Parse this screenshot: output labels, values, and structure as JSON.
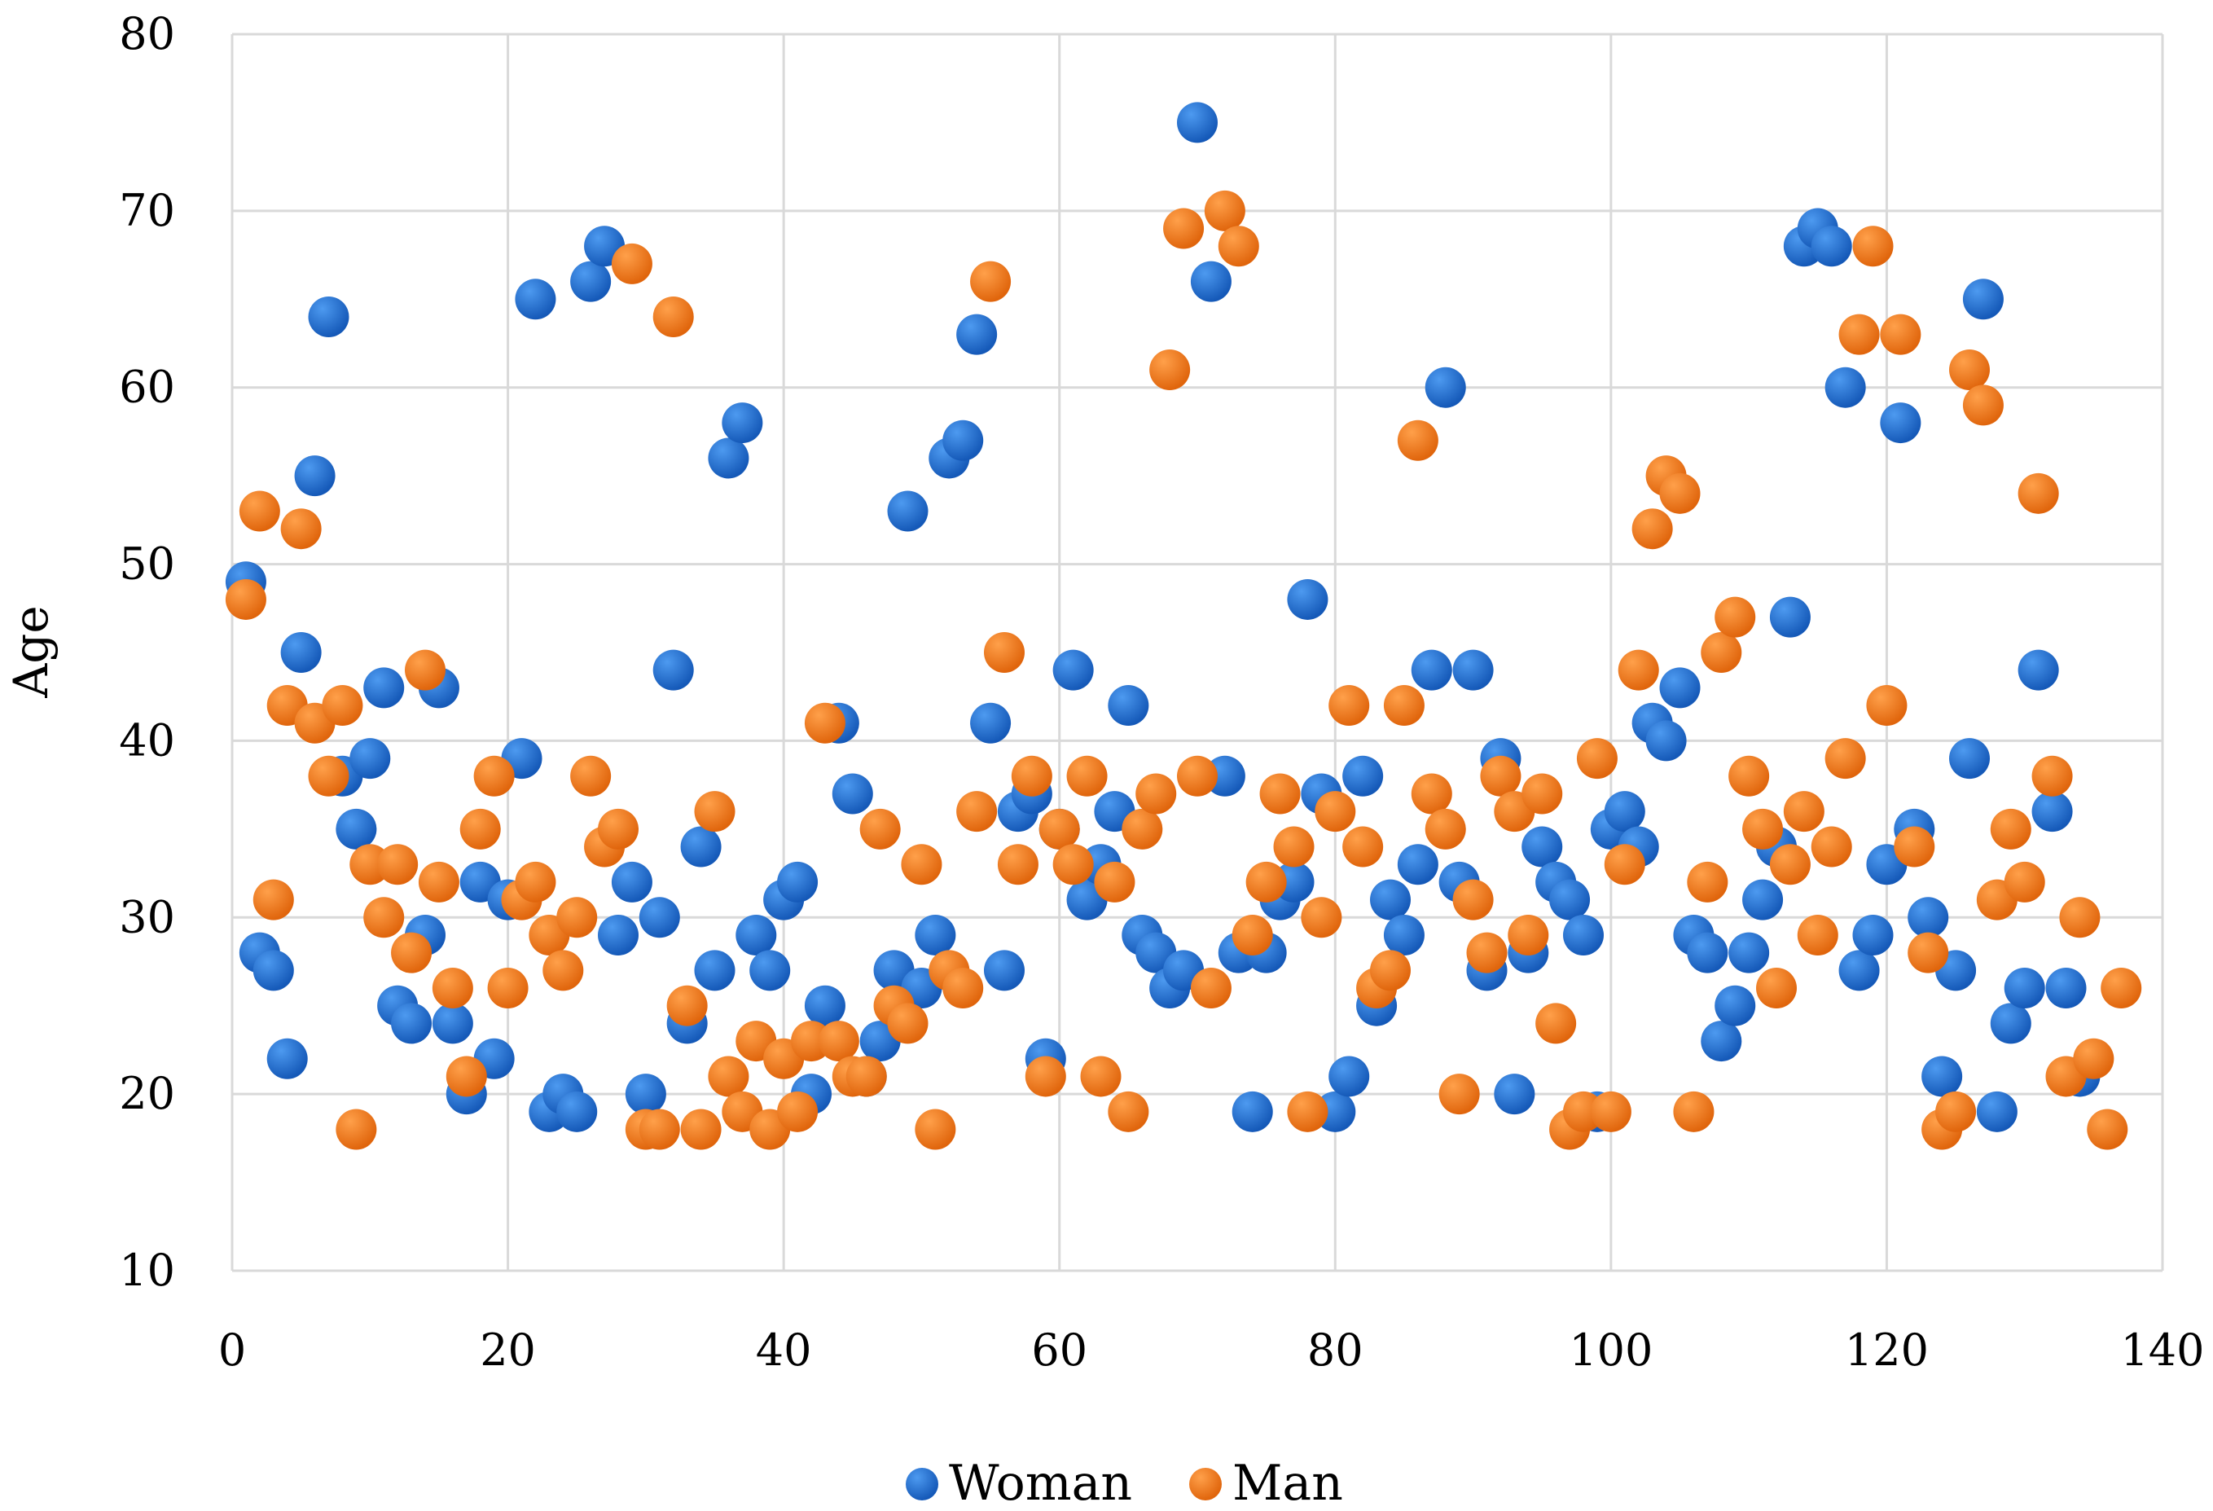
{
  "chart_data": {
    "type": "scatter",
    "title": "",
    "xlabel": "",
    "ylabel": "Age",
    "xlim": [
      0,
      140
    ],
    "ylim": [
      10,
      80
    ],
    "x_ticks": [
      "0",
      "20",
      "40",
      "60",
      "80",
      "100",
      "120",
      "140"
    ],
    "y_ticks": [
      "10",
      "20",
      "30",
      "40",
      "50",
      "60",
      "70",
      "80"
    ],
    "grid": true,
    "legend_position": "bottom-center",
    "series": [
      {
        "name": "Woman",
        "color": "#1f6fd1",
        "points": [
          [
            1,
            49
          ],
          [
            2,
            28
          ],
          [
            3,
            27
          ],
          [
            4,
            22
          ],
          [
            5,
            45
          ],
          [
            6,
            55
          ],
          [
            7,
            64
          ],
          [
            8,
            38
          ],
          [
            9,
            35
          ],
          [
            10,
            39
          ],
          [
            11,
            43
          ],
          [
            12,
            25
          ],
          [
            13,
            24
          ],
          [
            14,
            29
          ],
          [
            15,
            43
          ],
          [
            16,
            24
          ],
          [
            17,
            20
          ],
          [
            18,
            32
          ],
          [
            19,
            22
          ],
          [
            20,
            31
          ],
          [
            21,
            39
          ],
          [
            22,
            65
          ],
          [
            23,
            19
          ],
          [
            24,
            20
          ],
          [
            25,
            19
          ],
          [
            26,
            66
          ],
          [
            27,
            68
          ],
          [
            28,
            29
          ],
          [
            29,
            32
          ],
          [
            30,
            20
          ],
          [
            31,
            30
          ],
          [
            32,
            44
          ],
          [
            33,
            24
          ],
          [
            34,
            34
          ],
          [
            35,
            27
          ],
          [
            36,
            56
          ],
          [
            37,
            58
          ],
          [
            38,
            29
          ],
          [
            39,
            27
          ],
          [
            40,
            31
          ],
          [
            41,
            32
          ],
          [
            42,
            20
          ],
          [
            43,
            25
          ],
          [
            44,
            41
          ],
          [
            45,
            37
          ],
          [
            46,
            21
          ],
          [
            47,
            23
          ],
          [
            48,
            27
          ],
          [
            49,
            53
          ],
          [
            50,
            26
          ],
          [
            51,
            29
          ],
          [
            52,
            56
          ],
          [
            53,
            57
          ],
          [
            54,
            63
          ],
          [
            55,
            41
          ],
          [
            56,
            27
          ],
          [
            57,
            36
          ],
          [
            58,
            37
          ],
          [
            59,
            22
          ],
          [
            60,
            35
          ],
          [
            61,
            44
          ],
          [
            62,
            31
          ],
          [
            63,
            33
          ],
          [
            64,
            36
          ],
          [
            65,
            42
          ],
          [
            66,
            29
          ],
          [
            67,
            28
          ],
          [
            68,
            26
          ],
          [
            69,
            27
          ],
          [
            70,
            75
          ],
          [
            71,
            66
          ],
          [
            72,
            38
          ],
          [
            73,
            28
          ],
          [
            74,
            19
          ],
          [
            75,
            28
          ],
          [
            76,
            31
          ],
          [
            77,
            32
          ],
          [
            78,
            48
          ],
          [
            79,
            37
          ],
          [
            80,
            19
          ],
          [
            81,
            21
          ],
          [
            82,
            38
          ],
          [
            83,
            25
          ],
          [
            84,
            31
          ],
          [
            85,
            29
          ],
          [
            86,
            33
          ],
          [
            87,
            44
          ],
          [
            88,
            60
          ],
          [
            89,
            32
          ],
          [
            90,
            44
          ],
          [
            91,
            27
          ],
          [
            92,
            39
          ],
          [
            93,
            20
          ],
          [
            94,
            28
          ],
          [
            95,
            34
          ],
          [
            96,
            32
          ],
          [
            97,
            31
          ],
          [
            98,
            29
          ],
          [
            99,
            19
          ],
          [
            100,
            35
          ],
          [
            101,
            36
          ],
          [
            102,
            34
          ],
          [
            103,
            41
          ],
          [
            104,
            40
          ],
          [
            105,
            43
          ],
          [
            106,
            29
          ],
          [
            107,
            28
          ],
          [
            108,
            23
          ],
          [
            109,
            25
          ],
          [
            110,
            28
          ],
          [
            111,
            31
          ],
          [
            112,
            34
          ],
          [
            113,
            47
          ],
          [
            114,
            68
          ],
          [
            115,
            69
          ],
          [
            116,
            68
          ],
          [
            117,
            60
          ],
          [
            118,
            27
          ],
          [
            119,
            29
          ],
          [
            120,
            33
          ],
          [
            121,
            58
          ],
          [
            122,
            35
          ],
          [
            123,
            30
          ],
          [
            124,
            21
          ],
          [
            125,
            27
          ],
          [
            126,
            39
          ],
          [
            127,
            65
          ],
          [
            128,
            19
          ],
          [
            129,
            24
          ],
          [
            130,
            26
          ],
          [
            131,
            44
          ],
          [
            132,
            36
          ],
          [
            133,
            26
          ],
          [
            134,
            21
          ]
        ]
      },
      {
        "name": "Man",
        "color": "#f57c20",
        "points": [
          [
            1,
            48
          ],
          [
            2,
            53
          ],
          [
            3,
            31
          ],
          [
            4,
            42
          ],
          [
            5,
            52
          ],
          [
            6,
            41
          ],
          [
            7,
            38
          ],
          [
            8,
            42
          ],
          [
            9,
            18
          ],
          [
            10,
            33
          ],
          [
            11,
            30
          ],
          [
            12,
            33
          ],
          [
            13,
            28
          ],
          [
            14,
            44
          ],
          [
            15,
            32
          ],
          [
            16,
            26
          ],
          [
            17,
            21
          ],
          [
            18,
            35
          ],
          [
            19,
            38
          ],
          [
            20,
            26
          ],
          [
            21,
            31
          ],
          [
            22,
            32
          ],
          [
            23,
            29
          ],
          [
            24,
            27
          ],
          [
            25,
            30
          ],
          [
            26,
            38
          ],
          [
            27,
            34
          ],
          [
            28,
            35
          ],
          [
            29,
            67
          ],
          [
            30,
            18
          ],
          [
            31,
            18
          ],
          [
            32,
            64
          ],
          [
            33,
            25
          ],
          [
            34,
            18
          ],
          [
            35,
            36
          ],
          [
            36,
            21
          ],
          [
            37,
            19
          ],
          [
            38,
            23
          ],
          [
            39,
            18
          ],
          [
            40,
            22
          ],
          [
            41,
            19
          ],
          [
            42,
            23
          ],
          [
            43,
            41
          ],
          [
            44,
            23
          ],
          [
            45,
            21
          ],
          [
            46,
            21
          ],
          [
            47,
            35
          ],
          [
            48,
            25
          ],
          [
            49,
            24
          ],
          [
            50,
            33
          ],
          [
            51,
            18
          ],
          [
            52,
            27
          ],
          [
            53,
            26
          ],
          [
            54,
            36
          ],
          [
            55,
            66
          ],
          [
            56,
            45
          ],
          [
            57,
            33
          ],
          [
            58,
            38
          ],
          [
            59,
            21
          ],
          [
            60,
            35
          ],
          [
            61,
            33
          ],
          [
            62,
            38
          ],
          [
            63,
            21
          ],
          [
            64,
            32
          ],
          [
            65,
            19
          ],
          [
            66,
            35
          ],
          [
            67,
            37
          ],
          [
            68,
            61
          ],
          [
            69,
            69
          ],
          [
            70,
            38
          ],
          [
            71,
            26
          ],
          [
            72,
            70
          ],
          [
            73,
            68
          ],
          [
            74,
            29
          ],
          [
            75,
            32
          ],
          [
            76,
            37
          ],
          [
            77,
            34
          ],
          [
            78,
            19
          ],
          [
            79,
            30
          ],
          [
            80,
            36
          ],
          [
            81,
            42
          ],
          [
            82,
            34
          ],
          [
            83,
            26
          ],
          [
            84,
            27
          ],
          [
            85,
            42
          ],
          [
            86,
            57
          ],
          [
            87,
            37
          ],
          [
            88,
            35
          ],
          [
            89,
            20
          ],
          [
            90,
            31
          ],
          [
            91,
            28
          ],
          [
            92,
            38
          ],
          [
            93,
            36
          ],
          [
            94,
            29
          ],
          [
            95,
            37
          ],
          [
            96,
            24
          ],
          [
            97,
            18
          ],
          [
            98,
            19
          ],
          [
            99,
            39
          ],
          [
            100,
            19
          ],
          [
            101,
            33
          ],
          [
            102,
            44
          ],
          [
            103,
            52
          ],
          [
            104,
            55
          ],
          [
            105,
            54
          ],
          [
            106,
            19
          ],
          [
            107,
            32
          ],
          [
            108,
            45
          ],
          [
            109,
            47
          ],
          [
            110,
            38
          ],
          [
            111,
            35
          ],
          [
            112,
            26
          ],
          [
            113,
            33
          ],
          [
            114,
            36
          ],
          [
            115,
            29
          ],
          [
            116,
            34
          ],
          [
            117,
            39
          ],
          [
            118,
            63
          ],
          [
            119,
            68
          ],
          [
            120,
            42
          ],
          [
            121,
            63
          ],
          [
            122,
            34
          ],
          [
            123,
            28
          ],
          [
            124,
            18
          ],
          [
            125,
            19
          ],
          [
            126,
            61
          ],
          [
            127,
            59
          ],
          [
            128,
            31
          ],
          [
            129,
            35
          ],
          [
            130,
            32
          ],
          [
            131,
            54
          ],
          [
            132,
            38
          ],
          [
            133,
            21
          ],
          [
            134,
            30
          ],
          [
            135,
            22
          ],
          [
            136,
            18
          ],
          [
            137,
            26
          ]
        ]
      }
    ]
  }
}
